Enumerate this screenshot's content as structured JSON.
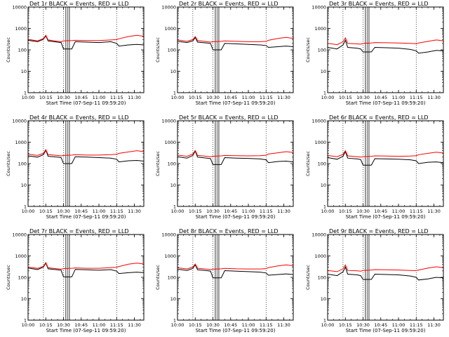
{
  "figure": {
    "xlabel": "Start Time (07-Sep-11 09:59:20)",
    "ylabel": "Counts/sec",
    "x_tick_labels": [
      "10:00",
      "10:15",
      "10:30",
      "10:45",
      "11:00",
      "11:15",
      "11:30"
    ],
    "y_tick_labels": [
      "1",
      "10",
      "100",
      "1000",
      "10000"
    ],
    "colors": {
      "events": "#000000",
      "lld": "#ff0000",
      "background": "#ffffff"
    }
  },
  "chart_data": [
    {
      "type": "line",
      "title": "Det 1r  BLACK = Events, RED = LLD",
      "xlabel": "Start Time (07-Sep-11 09:59:20)",
      "ylabel": "Counts/sec",
      "y_scale": "log",
      "ylim": [
        1,
        10000
      ],
      "xlim": [
        "10:00",
        "11:38"
      ],
      "x": [
        "10:00",
        "10:08",
        "10:13",
        "10:15",
        "10:17",
        "10:25",
        "10:28",
        "10:30",
        "10:37",
        "10:40",
        "10:50",
        "11:00",
        "11:10",
        "11:15",
        "11:17",
        "11:25",
        "11:32",
        "11:38"
      ],
      "series": [
        {
          "name": "Events",
          "values": [
            280,
            240,
            310,
            450,
            260,
            230,
            220,
            110,
            110,
            240,
            230,
            220,
            240,
            200,
            150,
            170,
            180,
            170
          ]
        },
        {
          "name": "LLD",
          "values": [
            310,
            260,
            340,
            480,
            290,
            250,
            240,
            260,
            270,
            280,
            270,
            270,
            290,
            300,
            330,
            420,
            480,
            430
          ]
        }
      ],
      "markers": [
        "10:13",
        "10:30",
        "11:15"
      ],
      "data_gaps": [
        [
          "10:32",
          "10:35"
        ]
      ]
    },
    {
      "type": "line",
      "title": "Det 2r  BLACK = Events, RED = LLD",
      "xlabel": "Start Time (07-Sep-11 09:59:20)",
      "ylabel": "Counts/sec",
      "y_scale": "log",
      "ylim": [
        1,
        10000
      ],
      "xlim": [
        "10:00",
        "11:38"
      ],
      "x": [
        "10:00",
        "10:08",
        "10:13",
        "10:15",
        "10:17",
        "10:25",
        "10:28",
        "10:30",
        "10:37",
        "10:40",
        "10:50",
        "11:00",
        "11:10",
        "11:15",
        "11:17",
        "11:25",
        "11:32",
        "11:38"
      ],
      "series": [
        {
          "name": "Events",
          "values": [
            250,
            220,
            260,
            380,
            230,
            210,
            200,
            100,
            100,
            200,
            190,
            180,
            170,
            160,
            130,
            140,
            150,
            140
          ]
        },
        {
          "name": "LLD",
          "values": [
            290,
            250,
            300,
            420,
            270,
            240,
            230,
            240,
            250,
            260,
            250,
            240,
            240,
            250,
            280,
            340,
            380,
            340
          ]
        }
      ],
      "markers": [
        "10:13",
        "10:30",
        "11:15"
      ],
      "data_gaps": [
        [
          "10:32",
          "10:35"
        ]
      ]
    },
    {
      "type": "line",
      "title": "Det 3r  BLACK = Events, RED = LLD",
      "xlabel": "Start Time (07-Sep-11 09:59:20)",
      "ylabel": "Counts/sec",
      "y_scale": "log",
      "ylim": [
        1,
        10000
      ],
      "xlim": [
        "10:00",
        "11:38"
      ],
      "x": [
        "10:00",
        "10:08",
        "10:13",
        "10:15",
        "10:17",
        "10:25",
        "10:28",
        "10:30",
        "10:37",
        "10:40",
        "10:50",
        "11:00",
        "11:10",
        "11:15",
        "11:17",
        "11:25",
        "11:32",
        "11:38"
      ],
      "series": [
        {
          "name": "Events",
          "values": [
            130,
            110,
            170,
            280,
            130,
            120,
            110,
            80,
            80,
            130,
            125,
            120,
            105,
            90,
            70,
            80,
            95,
            90
          ]
        },
        {
          "name": "LLD",
          "values": [
            200,
            175,
            240,
            360,
            200,
            190,
            185,
            200,
            210,
            220,
            215,
            210,
            200,
            195,
            210,
            250,
            290,
            260
          ]
        }
      ],
      "markers": [
        "10:13",
        "10:30",
        "11:15"
      ],
      "data_gaps": [
        [
          "10:32",
          "10:35"
        ]
      ]
    },
    {
      "type": "line",
      "title": "Det 4r  BLACK = Events, RED = LLD",
      "xlabel": "Start Time (07-Sep-11 09:59:20)",
      "ylabel": "Counts/sec",
      "y_scale": "log",
      "ylim": [
        1,
        10000
      ],
      "xlim": [
        "10:00",
        "11:38"
      ],
      "x": [
        "10:00",
        "10:08",
        "10:13",
        "10:15",
        "10:17",
        "10:25",
        "10:28",
        "10:30",
        "10:37",
        "10:40",
        "10:50",
        "11:00",
        "11:10",
        "11:15",
        "11:17",
        "11:25",
        "11:32",
        "11:38"
      ],
      "series": [
        {
          "name": "Events",
          "values": [
            230,
            200,
            260,
            420,
            220,
            200,
            190,
            100,
            100,
            210,
            200,
            190,
            180,
            160,
            120,
            135,
            140,
            130
          ]
        },
        {
          "name": "LLD",
          "values": [
            270,
            240,
            300,
            450,
            260,
            240,
            230,
            240,
            250,
            260,
            250,
            250,
            260,
            270,
            300,
            350,
            400,
            360
          ]
        }
      ],
      "markers": [
        "10:13",
        "10:30",
        "11:15"
      ],
      "data_gaps": [
        [
          "10:32",
          "10:35"
        ]
      ]
    },
    {
      "type": "line",
      "title": "Det 5r  BLACK = Events, RED = LLD",
      "xlabel": "Start Time (07-Sep-11 09:59:20)",
      "ylabel": "Counts/sec",
      "y_scale": "log",
      "ylim": [
        1,
        10000
      ],
      "xlim": [
        "10:00",
        "11:38"
      ],
      "x": [
        "10:00",
        "10:08",
        "10:13",
        "10:15",
        "10:17",
        "10:25",
        "10:28",
        "10:30",
        "10:37",
        "10:40",
        "10:50",
        "11:00",
        "11:10",
        "11:15",
        "11:17",
        "11:25",
        "11:32",
        "11:38"
      ],
      "series": [
        {
          "name": "Events",
          "values": [
            210,
            180,
            240,
            380,
            200,
            180,
            170,
            90,
            90,
            190,
            180,
            175,
            165,
            150,
            110,
            125,
            130,
            120
          ]
        },
        {
          "name": "LLD",
          "values": [
            250,
            220,
            280,
            410,
            240,
            220,
            210,
            220,
            230,
            240,
            235,
            230,
            235,
            245,
            280,
            320,
            360,
            330
          ]
        }
      ],
      "markers": [
        "10:13",
        "10:30",
        "11:15"
      ],
      "data_gaps": [
        [
          "10:32",
          "10:35"
        ]
      ]
    },
    {
      "type": "line",
      "title": "Det 6r  BLACK = Events, RED = LLD",
      "xlabel": "Start Time (07-Sep-11 09:59:20)",
      "ylabel": "Counts/sec",
      "y_scale": "log",
      "ylim": [
        1,
        10000
      ],
      "xlim": [
        "10:00",
        "11:38"
      ],
      "x": [
        "10:00",
        "10:08",
        "10:13",
        "10:15",
        "10:17",
        "10:25",
        "10:28",
        "10:30",
        "10:37",
        "10:40",
        "10:50",
        "11:00",
        "11:10",
        "11:15",
        "11:17",
        "11:25",
        "11:32",
        "11:38"
      ],
      "series": [
        {
          "name": "Events",
          "values": [
            190,
            160,
            220,
            360,
            180,
            165,
            155,
            85,
            85,
            170,
            165,
            160,
            150,
            135,
            100,
            115,
            120,
            110
          ]
        },
        {
          "name": "LLD",
          "values": [
            240,
            210,
            270,
            400,
            230,
            210,
            200,
            210,
            220,
            230,
            225,
            220,
            225,
            235,
            260,
            300,
            340,
            310
          ]
        }
      ],
      "markers": [
        "10:13",
        "10:30",
        "11:15"
      ],
      "data_gaps": [
        [
          "10:32",
          "10:35"
        ]
      ]
    },
    {
      "type": "line",
      "title": "Det 7r  BLACK = Events, RED = LLD",
      "xlabel": "Start Time (07-Sep-11 09:59:20)",
      "ylabel": "Counts/sec",
      "y_scale": "log",
      "ylim": [
        1,
        10000
      ],
      "xlim": [
        "10:00",
        "11:38"
      ],
      "x": [
        "10:00",
        "10:08",
        "10:13",
        "10:15",
        "10:17",
        "10:25",
        "10:28",
        "10:30",
        "10:37",
        "10:40",
        "10:50",
        "11:00",
        "11:10",
        "11:15",
        "11:17",
        "11:25",
        "11:32",
        "11:38"
      ],
      "series": [
        {
          "name": "Events",
          "values": [
            270,
            230,
            300,
            460,
            250,
            225,
            215,
            105,
            105,
            235,
            225,
            215,
            230,
            195,
            150,
            165,
            175,
            165
          ]
        },
        {
          "name": "LLD",
          "values": [
            300,
            260,
            330,
            490,
            280,
            250,
            240,
            255,
            265,
            275,
            265,
            265,
            285,
            295,
            320,
            410,
            460,
            420
          ]
        }
      ],
      "markers": [
        "10:13",
        "10:30",
        "11:15"
      ],
      "data_gaps": [
        [
          "10:32",
          "10:35"
        ]
      ]
    },
    {
      "type": "line",
      "title": "Det 8r  BLACK = Events, RED = LLD",
      "xlabel": "Start Time (07-Sep-11 09:59:20)",
      "ylabel": "Counts/sec",
      "y_scale": "log",
      "ylim": [
        1,
        10000
      ],
      "xlim": [
        "10:00",
        "11:38"
      ],
      "x": [
        "10:00",
        "10:08",
        "10:13",
        "10:15",
        "10:17",
        "10:25",
        "10:28",
        "10:30",
        "10:37",
        "10:40",
        "10:50",
        "11:00",
        "11:10",
        "11:15",
        "11:17",
        "11:25",
        "11:32",
        "11:38"
      ],
      "series": [
        {
          "name": "Events",
          "values": [
            240,
            210,
            260,
            390,
            225,
            205,
            195,
            95,
            95,
            205,
            195,
            185,
            175,
            160,
            125,
            135,
            145,
            135
          ]
        },
        {
          "name": "LLD",
          "values": [
            280,
            245,
            300,
            420,
            265,
            240,
            230,
            240,
            250,
            260,
            250,
            245,
            245,
            255,
            285,
            340,
            380,
            345
          ]
        }
      ],
      "markers": [
        "10:13",
        "10:30",
        "11:15"
      ],
      "data_gaps": [
        [
          "10:32",
          "10:35"
        ]
      ]
    },
    {
      "type": "line",
      "title": "Det 9r  BLACK = Events, RED = LLD",
      "xlabel": "Start Time (07-Sep-11 09:59:20)",
      "ylabel": "Counts/sec",
      "y_scale": "log",
      "ylim": [
        1,
        10000
      ],
      "xlim": [
        "10:00",
        "11:38"
      ],
      "x": [
        "10:00",
        "10:08",
        "10:13",
        "10:15",
        "10:17",
        "10:25",
        "10:28",
        "10:30",
        "10:37",
        "10:40",
        "10:50",
        "11:00",
        "11:10",
        "11:15",
        "11:17",
        "11:25",
        "11:32",
        "11:38"
      ],
      "series": [
        {
          "name": "Events",
          "values": [
            140,
            120,
            180,
            300,
            140,
            130,
            120,
            80,
            80,
            140,
            135,
            130,
            115,
            100,
            75,
            85,
            100,
            95
          ]
        },
        {
          "name": "LLD",
          "values": [
            210,
            185,
            250,
            380,
            210,
            200,
            195,
            210,
            220,
            230,
            225,
            220,
            210,
            205,
            220,
            270,
            310,
            280
          ]
        }
      ],
      "markers": [
        "10:13",
        "10:30",
        "11:15"
      ],
      "data_gaps": [
        [
          "10:32",
          "10:35"
        ]
      ]
    }
  ]
}
